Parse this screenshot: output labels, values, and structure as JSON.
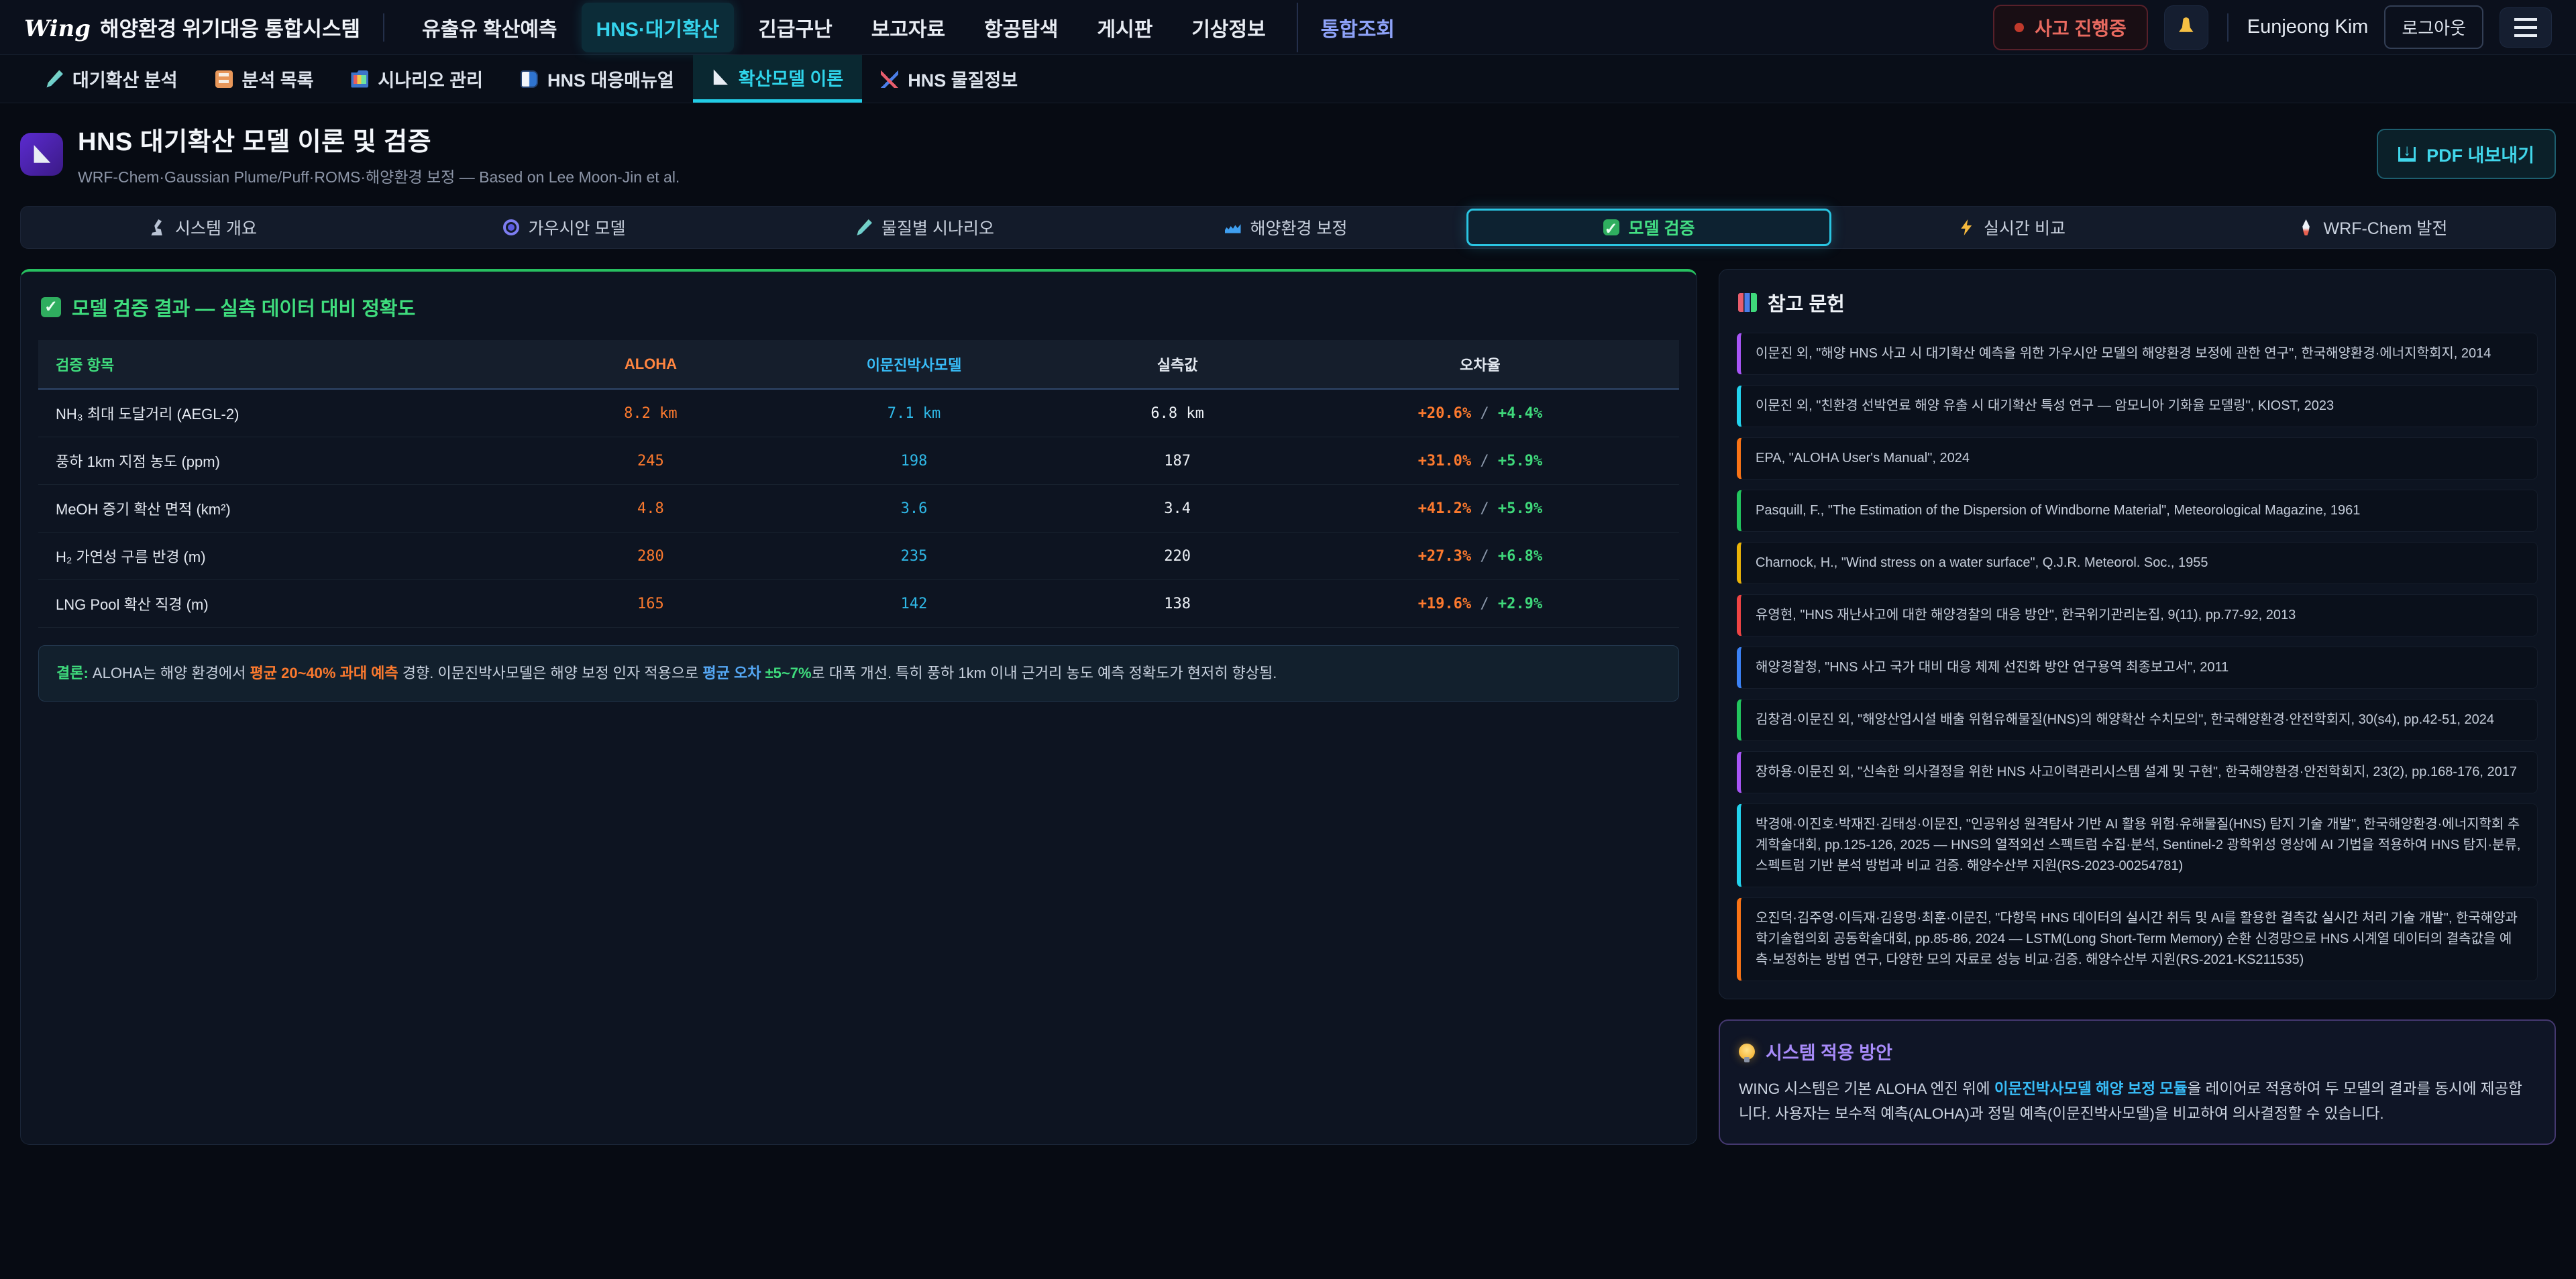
{
  "header": {
    "logo_mark": "Wing",
    "logo_title": "해양환경 위기대응 통합시스템",
    "nav": [
      {
        "label": "유출유 확산예측",
        "active": false,
        "accent": false
      },
      {
        "label": "HNS·대기확산",
        "active": true,
        "accent": false
      },
      {
        "label": "긴급구난",
        "active": false,
        "accent": false
      },
      {
        "label": "보고자료",
        "active": false,
        "accent": false
      },
      {
        "label": "항공탐색",
        "active": false,
        "accent": false
      },
      {
        "label": "게시판",
        "active": false,
        "accent": false
      },
      {
        "label": "기상정보",
        "active": false,
        "accent": false
      },
      {
        "label": "통합조회",
        "active": false,
        "accent": true
      }
    ],
    "incident_badge": "사고 진행중",
    "bell_icon": "bell-icon",
    "user_name": "Eunjeong Kim",
    "logout_label": "로그아웃",
    "menu_icon": "hamburger-icon"
  },
  "subnav": [
    {
      "icon": "pen",
      "label": "대기확산 분석",
      "active": false
    },
    {
      "icon": "clipboard",
      "label": "분석 목록",
      "active": false
    },
    {
      "icon": "folder",
      "label": "시나리오 관리",
      "active": false
    },
    {
      "icon": "book",
      "label": "HNS 대응매뉴얼",
      "active": false
    },
    {
      "icon": "ruler",
      "label": "확산모델 이론",
      "active": true
    },
    {
      "icon": "dna",
      "label": "HNS 물질정보",
      "active": false
    }
  ],
  "page": {
    "title_icon": "triangle-ruler-icon",
    "title": "HNS 대기확산 모델 이론 및 검증",
    "subtitle": "WRF-Chem·Gaussian Plume/Puff·ROMS·해양환경 보정 — Based on Lee Moon-Jin et al.",
    "pdf_button": "PDF 내보내기"
  },
  "tabs": [
    {
      "icon": "scope",
      "label": "시스템 개요",
      "active": false
    },
    {
      "icon": "spiral",
      "label": "가우시안 모델",
      "active": false
    },
    {
      "icon": "pen",
      "label": "물질별 시나리오",
      "active": false
    },
    {
      "icon": "wave",
      "label": "해양환경 보정",
      "active": false
    },
    {
      "icon": "check",
      "label": "모델 검증",
      "active": true
    },
    {
      "icon": "bolt",
      "label": "실시간 비교",
      "active": false
    },
    {
      "icon": "rocket",
      "label": "WRF-Chem 발전",
      "active": false
    }
  ],
  "validation": {
    "heading_icon": "check-icon",
    "heading": "모델 검증 결과 — 실측 데이터 대비 정확도",
    "table": {
      "headers": [
        "검증 항목",
        "ALOHA",
        "이문진박사모델",
        "실측값",
        "오차율"
      ],
      "sep": " / ",
      "rows": [
        {
          "item": "NH₃ 최대 도달거리 (AEGL-2)",
          "aloha": "8.2 km",
          "model": "7.1 km",
          "measured": "6.8 km",
          "err_aloha": "+20.6%",
          "err_model": "+4.4%"
        },
        {
          "item": "풍하 1km 지점 농도 (ppm)",
          "aloha": "245",
          "model": "198",
          "measured": "187",
          "err_aloha": "+31.0%",
          "err_model": "+5.9%"
        },
        {
          "item": "MeOH 증기 확산 면적 (km²)",
          "aloha": "4.8",
          "model": "3.6",
          "measured": "3.4",
          "err_aloha": "+41.2%",
          "err_model": "+5.9%"
        },
        {
          "item": "H₂ 가연성 구름 반경 (m)",
          "aloha": "280",
          "model": "235",
          "measured": "220",
          "err_aloha": "+27.3%",
          "err_model": "+6.8%"
        },
        {
          "item": "LNG Pool 확산 직경 (m)",
          "aloha": "165",
          "model": "142",
          "measured": "138",
          "err_aloha": "+19.6%",
          "err_model": "+2.9%"
        }
      ]
    },
    "conclusion_parts": [
      {
        "t": "결론:",
        "s": "green"
      },
      {
        "t": " ALOHA는 해양 환경에서 ",
        "s": "plain"
      },
      {
        "t": "평균 20~40% 과대 예측",
        "s": "orange"
      },
      {
        "t": " 경향. 이문진박사모델은 해양 보정 인자 적용으로 ",
        "s": "plain"
      },
      {
        "t": "평균 오차",
        "s": "blue"
      },
      {
        "t": " ±5~7%",
        "s": "green"
      },
      {
        "t": "로 대폭 개선. 특히 풍하 1km 이내 근거리 농도 예측 정확도가 현저히 향상됨.",
        "s": "plain"
      }
    ]
  },
  "references": {
    "title_icon": "books-icon",
    "title": "참고 문헌",
    "items": [
      {
        "color": "#a855f7",
        "text": "이문진 외, \"해양 HNS 사고 시 대기확산 예측을 위한 가우시안 모델의 해양환경 보정에 관한 연구\", 한국해양환경·에너지학회지, 2014"
      },
      {
        "color": "#22d3ee",
        "text": "이문진 외, \"친환경 선박연료 해양 유출 시 대기확산 특성 연구 — 암모니아 기화율 모델링\", KIOST, 2023"
      },
      {
        "color": "#f97316",
        "text": "EPA, \"ALOHA User's Manual\", 2024"
      },
      {
        "color": "#22c55e",
        "text": "Pasquill, F., \"The Estimation of the Dispersion of Windborne Material\", Meteorological Magazine, 1961"
      },
      {
        "color": "#eab308",
        "text": "Charnock, H., \"Wind stress on a water surface\", Q.J.R. Meteorol. Soc., 1955"
      },
      {
        "color": "#ef4444",
        "text": "유영현, \"HNS 재난사고에 대한 해양경찰의 대응 방안\", 한국위기관리논집, 9(11), pp.77-92, 2013"
      },
      {
        "color": "#3b82f6",
        "text": "해양경찰청, \"HNS 사고 국가 대비 대응 체제 선진화 방안 연구용역 최종보고서\", 2011"
      },
      {
        "color": "#22c55e",
        "text": "김창겸·이문진 외, \"해양산업시설 배출 위험유해물질(HNS)의 해양확산 수치모의\", 한국해양환경·안전학회지, 30(s4), pp.42-51, 2024"
      },
      {
        "color": "#a855f7",
        "text": "장하용·이문진 외, \"신속한 의사결정을 위한 HNS 사고이력관리시스템 설계 및 구현\", 한국해양환경·안전학회지, 23(2), pp.168-176, 2017"
      },
      {
        "color": "#22d3ee",
        "text": "박경애·이진호·박재진·김태성·이문진, \"인공위성 원격탐사 기반 AI 활용 위험·유해물질(HNS) 탐지 기술 개발\", 한국해양환경·에너지학회 추계학술대회, pp.125-126, 2025 — HNS의 열적외선 스펙트럼 수집·분석, Sentinel-2 광학위성 영상에 AI 기법을 적용하여 HNS 탐지·분류, 스펙트럼 기반 분석 방법과 비교 검증. 해양수산부 지원(RS-2023-00254781)"
      },
      {
        "color": "#f97316",
        "text": "오진덕·김주영·이득재·김용명·최훈·이문진, \"다항목 HNS 데이터의 실시간 취득 및 AI를 활용한 결측값 실시간 처리 기술 개발\", 한국해양과학기술협의회 공동학술대회, pp.85-86, 2024 — LSTM(Long Short-Term Memory) 순환 신경망으로 HNS 시계열 데이터의 결측값을 예측·보정하는 방법 연구, 다양한 모의 자료로 성능 비교·검증. 해양수산부 지원(RS-2021-KS211535)"
      }
    ]
  },
  "application": {
    "title_icon": "bulb-icon",
    "title": "시스템 적용 방안",
    "body_parts": [
      {
        "t": "WING 시스템은 기본 ALOHA 엔진 위에 ",
        "s": "plain"
      },
      {
        "t": "이문진박사모델 해양 보정 모듈",
        "s": "cyan"
      },
      {
        "t": "을 레이어로 적용하여 두 모델의 결과를 동시에 제공합니다. 사용자는 보수적 예측(ALOHA)과 정밀 예측(이문진박사모델)을 비교하여 의사결정할 수 있습니다.",
        "s": "plain"
      }
    ]
  }
}
